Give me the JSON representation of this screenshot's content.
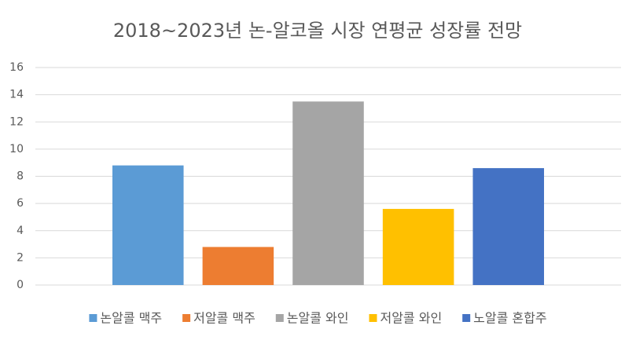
{
  "chart_data": {
    "type": "bar",
    "title": "2018~2023년 논-알코올 시장 연평균 성장률 전망",
    "categories": [
      null
    ],
    "series": [
      {
        "name": "논알콜 맥주",
        "color": "#5b9bd5",
        "values": [
          8.8
        ]
      },
      {
        "name": "저알콜 맥주",
        "color": "#ed7d31",
        "values": [
          2.8
        ]
      },
      {
        "name": "논알콜 와인",
        "color": "#a5a5a5",
        "values": [
          13.5
        ]
      },
      {
        "name": "저알콜 와인",
        "color": "#ffc000",
        "values": [
          5.6
        ]
      },
      {
        "name": "노알콜 혼합주",
        "color": "#4472c4",
        "values": [
          8.6
        ]
      }
    ],
    "ylim": [
      0,
      16
    ],
    "yticks": [
      0,
      2,
      4,
      6,
      8,
      10,
      12,
      14,
      16
    ],
    "grid": true,
    "legend": "bottom"
  }
}
